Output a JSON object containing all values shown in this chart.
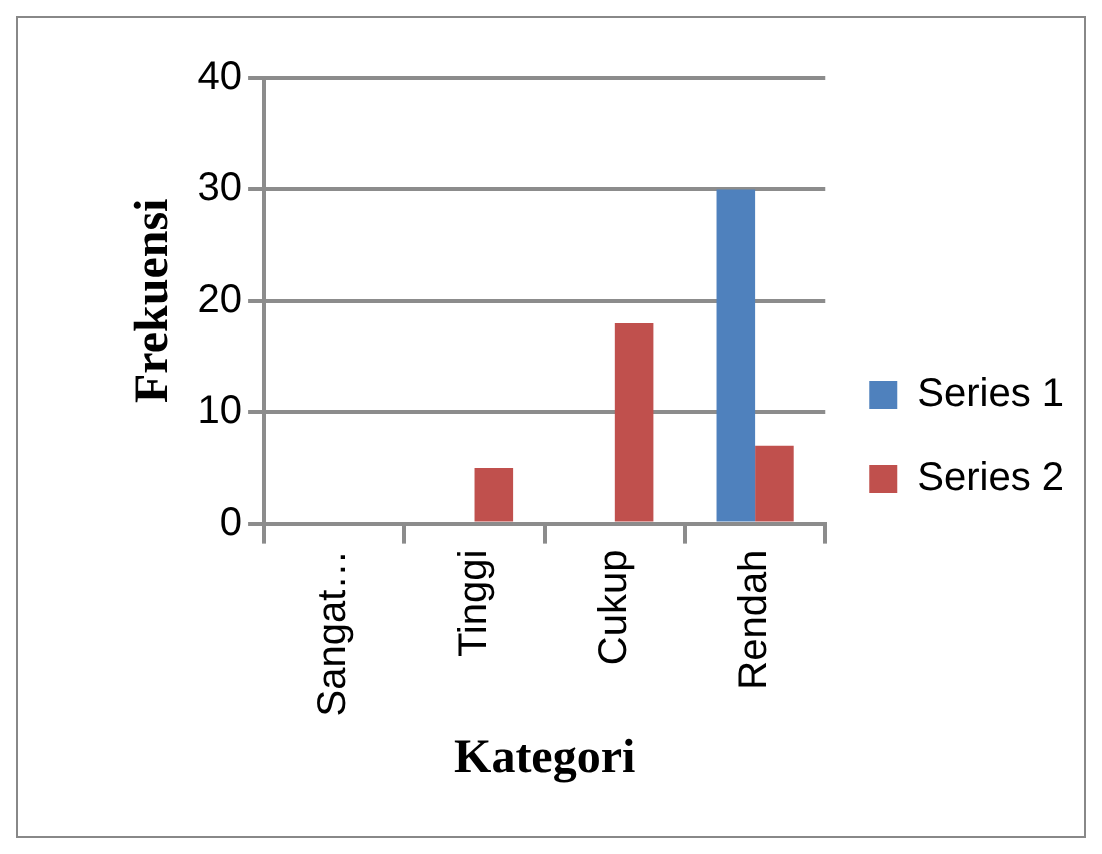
{
  "chart_data": {
    "type": "bar",
    "xlabel": "Kategori",
    "ylabel": "Frekuensi",
    "categories": [
      "Sangat…",
      "Tinggi",
      "Cukup",
      "Rendah"
    ],
    "series": [
      {
        "name": "Series 1",
        "color": "#4f81bd",
        "values": [
          0,
          0,
          0,
          30
        ]
      },
      {
        "name": "Series 2",
        "color": "#c0504d",
        "values": [
          0,
          5,
          18,
          7
        ]
      }
    ],
    "ylim": [
      0,
      40
    ],
    "yticks": [
      0,
      10,
      20,
      30,
      40
    ],
    "grid": "y",
    "legend": "right"
  }
}
